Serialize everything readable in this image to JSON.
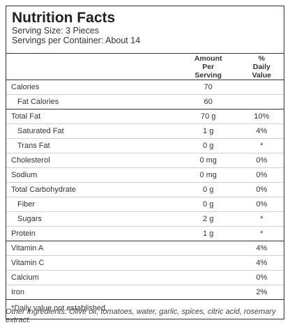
{
  "header": {
    "title": "Nutrition Facts",
    "serving_size": "Serving Size: 3 Pieces",
    "servings_per_container": "Servings per Container: About 14"
  },
  "table": {
    "col_amount": "Amount Per Serving",
    "col_daily": "% Daily Value",
    "rows": [
      {
        "label": "Calories",
        "amount": "70",
        "dv": ""
      },
      {
        "label": "Fat Calories",
        "amount": "60",
        "dv": ""
      },
      {
        "label": "Total Fat",
        "amount": "70 g",
        "dv": "10%"
      },
      {
        "label": "Saturated Fat",
        "amount": "1 g",
        "dv": "4%"
      },
      {
        "label": "Trans Fat",
        "amount": "0 g",
        "dv": "*"
      },
      {
        "label": "Cholesterol",
        "amount": "0 mg",
        "dv": "0%"
      },
      {
        "label": "Sodium",
        "amount": "0 mg",
        "dv": "0%"
      },
      {
        "label": "Total Carbohydrate",
        "amount": "0 g",
        "dv": "0%"
      },
      {
        "label": "Fiber",
        "amount": "0 g",
        "dv": "0%"
      },
      {
        "label": "Sugars",
        "amount": "2 g",
        "dv": "*"
      },
      {
        "label": "Protein",
        "amount": "1 g",
        "dv": "*"
      },
      {
        "label": "Vitamin A",
        "amount": "",
        "dv": "4%"
      },
      {
        "label": "Vitamin C",
        "amount": "",
        "dv": "4%"
      },
      {
        "label": "Calcium",
        "amount": "",
        "dv": "0%"
      },
      {
        "label": "Iron",
        "amount": "",
        "dv": "2%"
      }
    ]
  },
  "footnote": "*Daily value not established.",
  "ingredients": "Other Ingredients: Olive oil, tomatoes, water, garlic, spices, citric acid, rosemary extract."
}
